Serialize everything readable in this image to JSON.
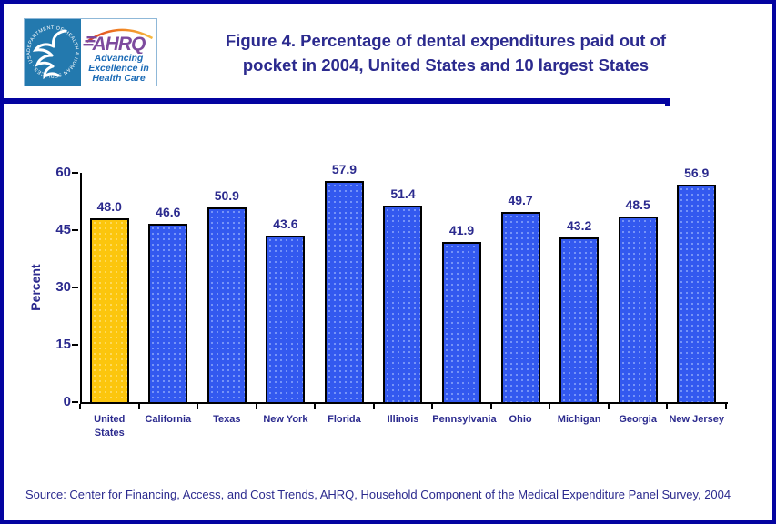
{
  "header": {
    "hhs_seal_text": "DEPARTMENT OF HEALTH & HUMAN SERVICES · USA",
    "ahrq_logo": {
      "acronym": "AHRQ",
      "tagline_lines": [
        "Advancing",
        "Excellence in",
        "Health Care"
      ]
    },
    "title_lines": [
      "Figure 4. Percentage of dental expenditures paid out of",
      "pocket in 2004, United States and 10 largest States"
    ]
  },
  "chart_data": {
    "type": "bar",
    "title": "Figure 4. Percentage of dental expenditures paid out of pocket in 2004, United States and 10 largest States",
    "categories": [
      "United States",
      "California",
      "Texas",
      "New York",
      "Florida",
      "Illinois",
      "Pennsylvania",
      "Ohio",
      "Michigan",
      "Georgia",
      "New Jersey"
    ],
    "category_label_lines": [
      [
        "United",
        "States"
      ],
      [
        "California"
      ],
      [
        "Texas"
      ],
      [
        "New York"
      ],
      [
        "Florida"
      ],
      [
        "Illinois"
      ],
      [
        "Pennsylvania"
      ],
      [
        "Ohio"
      ],
      [
        "Michigan"
      ],
      [
        "Georgia"
      ],
      [
        "New Jersey"
      ]
    ],
    "values": [
      48.0,
      46.6,
      50.9,
      43.6,
      57.9,
      51.4,
      41.9,
      49.7,
      43.2,
      48.5,
      56.9
    ],
    "value_labels": [
      "48.0",
      "46.6",
      "50.9",
      "43.6",
      "57.9",
      "51.4",
      "41.9",
      "49.7",
      "43.2",
      "48.5",
      "56.9"
    ],
    "xlabel": "",
    "ylabel": "Percent",
    "ylim": [
      0,
      60
    ],
    "yticks": [
      "0",
      "15",
      "30",
      "45",
      "60"
    ],
    "grid": false,
    "legend": false,
    "highlight_index": 0,
    "colors": {
      "bar": "#3359ef",
      "bar_highlight": "#fcc60d",
      "bar_border": "#000000",
      "label_text": "#2b2a8e"
    }
  },
  "footer": {
    "source": "Source: Center for Financing, Access, and Cost Trends, AHRQ, Household Component of the Medical Expenditure Panel Survey, 2004"
  },
  "colors": {
    "navy_text": "#2b2a8e",
    "frame_border": "#0303a0",
    "divider": "#0303a0",
    "hhs_blue": "#2379ae",
    "ahrq_purple": "#7d4a9e",
    "tagline_blue": "#1a6ab5",
    "arc_orange": "#f08020",
    "axis": "#000000"
  }
}
